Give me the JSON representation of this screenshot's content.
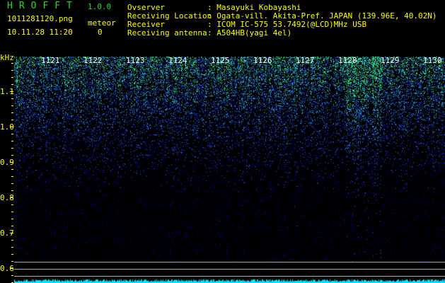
{
  "app": {
    "title": "HROFFT",
    "version": "1.0.0"
  },
  "file": {
    "name": "1011281120.png",
    "datetime": "10.11.28 11:20"
  },
  "meteor": {
    "label": "meteor",
    "count": "0"
  },
  "info": [
    {
      "label": "Ovserver",
      "value": ": Masayuki Kobayashi"
    },
    {
      "label": "Receiving Location",
      "value": ": Ogata-vill. Akita-Pref. JAPAN (139.96E, 40.02N)"
    },
    {
      "label": "Receiver",
      "value": ": ICOM IC-575 53.7492(@LCD)MHz USB"
    },
    {
      "label": "Receiving antenna",
      "value": ": A504HB(yagi 4el)"
    }
  ],
  "y_axis": {
    "unit": "kHz",
    "ticks": [
      "1.1",
      "1.0",
      "0.9",
      "0.8",
      "0.7",
      "0.6"
    ]
  },
  "time_labels": [
    "1121",
    "1122",
    "1123",
    "1124",
    "1125",
    "1126",
    "1127",
    "1128",
    "1129",
    "1130"
  ],
  "colors": {
    "text": "#ffff00",
    "title": "#22dd22",
    "low": "#0000aa",
    "mid": "#2266ff",
    "high": "#33ff66",
    "level": "#00e5ff"
  }
}
